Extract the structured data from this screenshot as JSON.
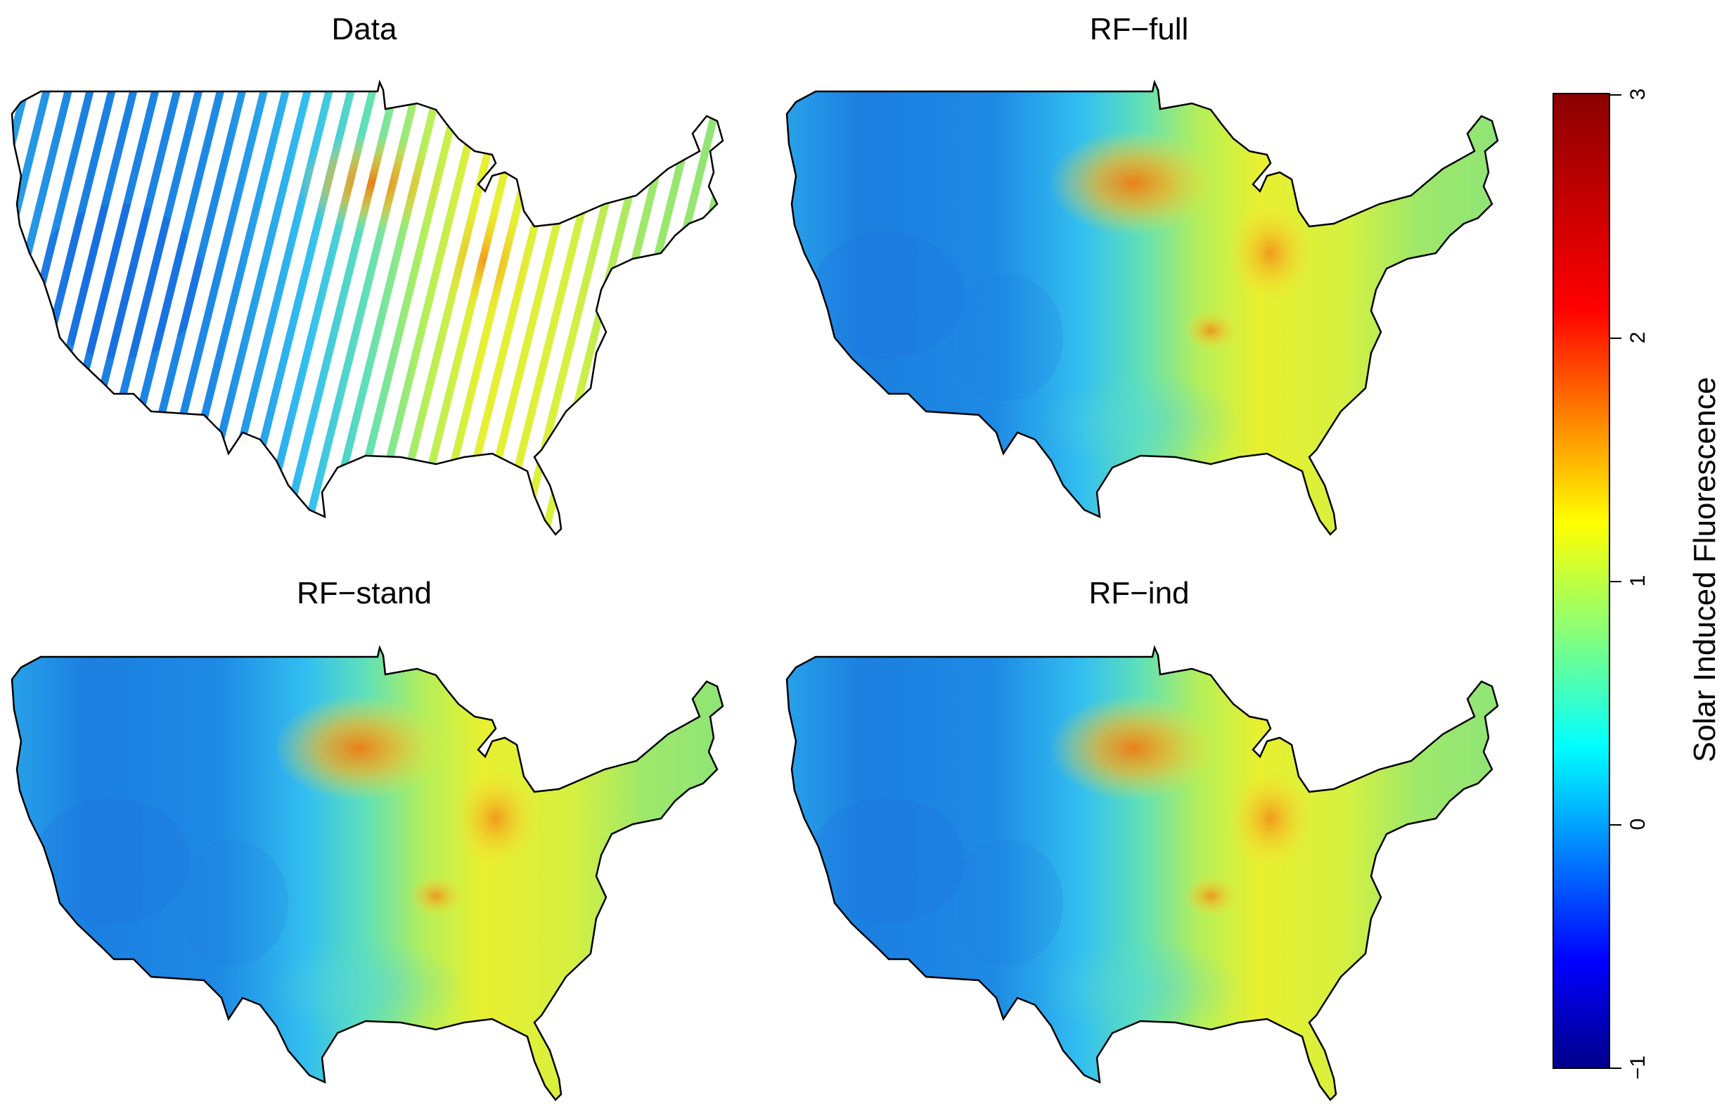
{
  "panels": [
    {
      "title": "Data",
      "pattern": "swaths"
    },
    {
      "title": "RF−full",
      "pattern": "full"
    },
    {
      "title": "RF−stand",
      "pattern": "full"
    },
    {
      "title": "RF−ind",
      "pattern": "full"
    }
  ],
  "legend": {
    "title": "Solar Induced Fluorescence",
    "ticks": [
      "−1",
      "0",
      "1",
      "2",
      "3"
    ],
    "range": [
      -1,
      3
    ],
    "colors": [
      "#00008B",
      "#0000FF",
      "#0080FF",
      "#00FFFF",
      "#80FF80",
      "#FFFF00",
      "#FF8000",
      "#FF0000",
      "#8B0000"
    ]
  }
}
